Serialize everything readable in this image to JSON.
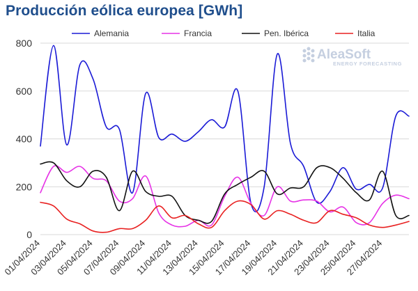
{
  "title": "Producción eólica europea [GWh]",
  "watermark": {
    "brand": "AleaSoft",
    "tagline": "ENERGY FORECASTING",
    "color": "#c5cfe0"
  },
  "chart_data": {
    "type": "line",
    "title": "Producción eólica europea [GWh]",
    "xlabel": "",
    "ylabel": "",
    "ylim": [
      0,
      800
    ],
    "yticks": [
      0,
      200,
      400,
      600,
      800
    ],
    "grid": {
      "horizontal": true,
      "vertical": false
    },
    "legend_position": "top",
    "x": [
      "01/04/2024",
      "02/04/2024",
      "03/04/2024",
      "04/04/2024",
      "05/04/2024",
      "06/04/2024",
      "07/04/2024",
      "08/04/2024",
      "09/04/2024",
      "10/04/2024",
      "11/04/2024",
      "12/04/2024",
      "13/04/2024",
      "14/04/2024",
      "15/04/2024",
      "16/04/2024",
      "17/04/2024",
      "18/04/2024",
      "19/04/2024",
      "20/04/2024",
      "21/04/2024",
      "22/04/2024",
      "23/04/2024",
      "24/04/2024",
      "25/04/2024",
      "26/04/2024",
      "27/04/2024",
      "28/04/2024",
      "29/04/2024"
    ],
    "x_tick_labels": [
      "01/04/2024",
      "03/04/2024",
      "05/04/2024",
      "07/04/2024",
      "09/04/2024",
      "11/04/2024",
      "13/04/2024",
      "15/04/2024",
      "17/04/2024",
      "19/04/2024",
      "21/04/2024",
      "23/04/2024",
      "25/04/2024",
      "27/04/2024"
    ],
    "series": [
      {
        "name": "Alemania",
        "color": "#1a1ad6",
        "values": [
          370,
          790,
          375,
          710,
          650,
          450,
          440,
          175,
          590,
          405,
          420,
          390,
          430,
          480,
          450,
          600,
          130,
          200,
          755,
          380,
          285,
          135,
          180,
          280,
          190,
          210,
          195,
          495,
          495
        ]
      },
      {
        "name": "Francia",
        "color": "#e632e6",
        "values": [
          175,
          285,
          260,
          285,
          235,
          225,
          140,
          150,
          245,
          90,
          40,
          35,
          60,
          40,
          160,
          240,
          130,
          80,
          200,
          140,
          145,
          140,
          95,
          115,
          50,
          50,
          130,
          165,
          150
        ]
      },
      {
        "name": "Pen. Ibérica",
        "color": "#111111",
        "values": [
          295,
          300,
          225,
          200,
          265,
          240,
          100,
          265,
          180,
          160,
          160,
          80,
          60,
          55,
          170,
          210,
          240,
          265,
          170,
          195,
          200,
          280,
          280,
          235,
          175,
          145,
          265,
          80,
          80
        ]
      },
      {
        "name": "Italia",
        "color": "#e82020",
        "values": [
          135,
          120,
          65,
          45,
          15,
          10,
          25,
          25,
          60,
          120,
          70,
          80,
          45,
          30,
          100,
          140,
          125,
          65,
          100,
          85,
          60,
          50,
          100,
          85,
          70,
          40,
          30,
          40,
          55
        ]
      }
    ]
  }
}
